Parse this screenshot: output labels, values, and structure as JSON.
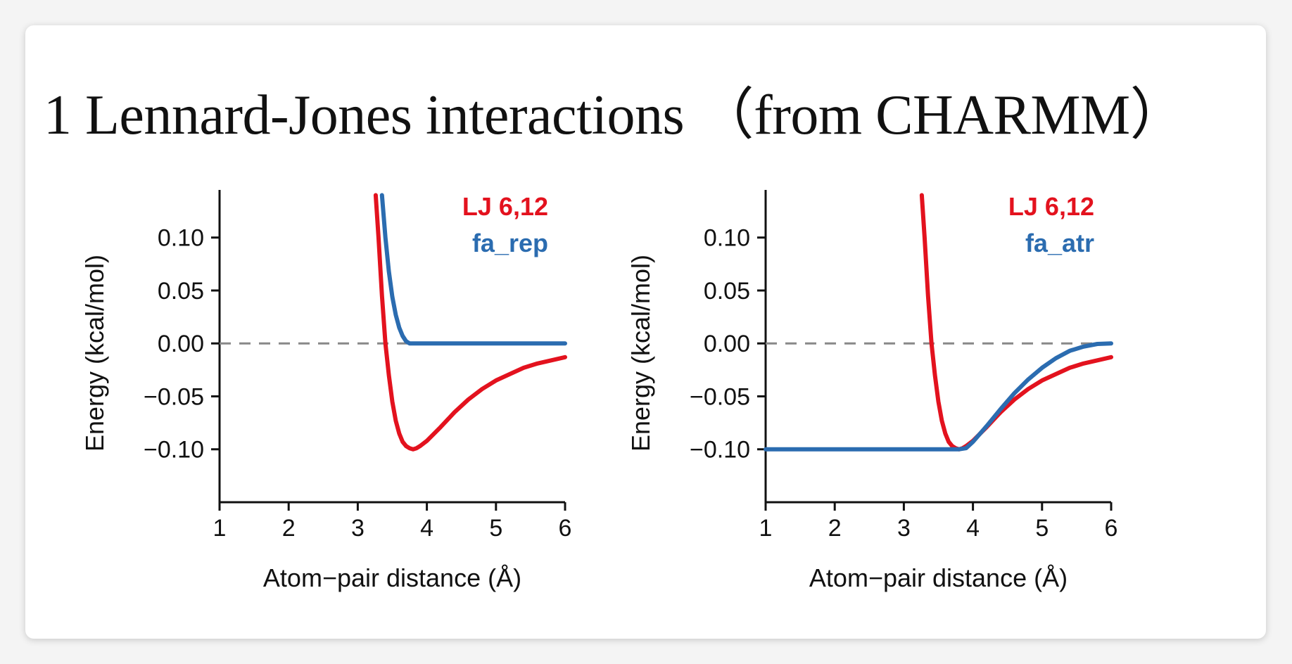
{
  "page": {
    "title": "1 Lennard-Jones interactions （from CHARMM）"
  },
  "colors": {
    "lj": "#e3121e",
    "rosetta": "#2b6cb0",
    "zero_line": "#888888",
    "axis": "#111111"
  },
  "chart_data": [
    {
      "type": "line",
      "xlabel": "Atom−pair distance (Å)",
      "ylabel": "Energy (kcal/mol)",
      "xlim": [
        1,
        6
      ],
      "ylim": [
        -0.15,
        0.145
      ],
      "xticks": [
        "1",
        "2",
        "3",
        "4",
        "5",
        "6"
      ],
      "yticks": [
        "0.10",
        "0.05",
        "0.00",
        "−0.05",
        "−0.10"
      ],
      "grid": false,
      "legend_position": "top-right",
      "reference_line": {
        "y": 0.0,
        "style": "dashed"
      },
      "series": [
        {
          "name": "LJ 6,12",
          "color": "#e3121e",
          "points": [
            [
              3.26,
              0.14
            ],
            [
              3.3,
              0.1
            ],
            [
              3.35,
              0.045
            ],
            [
              3.4,
              0.0
            ],
            [
              3.45,
              -0.03
            ],
            [
              3.5,
              -0.055
            ],
            [
              3.55,
              -0.073
            ],
            [
              3.6,
              -0.085
            ],
            [
              3.65,
              -0.093
            ],
            [
              3.7,
              -0.097
            ],
            [
              3.75,
              -0.099
            ],
            [
              3.8,
              -0.1
            ],
            [
              3.85,
              -0.099
            ],
            [
              3.9,
              -0.097
            ],
            [
              4.0,
              -0.092
            ],
            [
              4.2,
              -0.079
            ],
            [
              4.4,
              -0.065
            ],
            [
              4.6,
              -0.053
            ],
            [
              4.8,
              -0.043
            ],
            [
              5.0,
              -0.035
            ],
            [
              5.2,
              -0.029
            ],
            [
              5.4,
              -0.023
            ],
            [
              5.6,
              -0.019
            ],
            [
              5.8,
              -0.016
            ],
            [
              6.0,
              -0.013
            ]
          ]
        },
        {
          "name": "fa_rep",
          "color": "#2b6cb0",
          "points": [
            [
              3.35,
              0.14
            ],
            [
              3.4,
              0.1
            ],
            [
              3.45,
              0.068
            ],
            [
              3.5,
              0.044
            ],
            [
              3.55,
              0.027
            ],
            [
              3.6,
              0.015
            ],
            [
              3.65,
              0.007
            ],
            [
              3.7,
              0.002
            ],
            [
              3.75,
              0.0
            ],
            [
              3.8,
              0.0
            ],
            [
              4.0,
              0.0
            ],
            [
              4.5,
              0.0
            ],
            [
              5.0,
              0.0
            ],
            [
              5.5,
              0.0
            ],
            [
              6.0,
              0.0
            ]
          ]
        }
      ]
    },
    {
      "type": "line",
      "xlabel": "Atom−pair distance (Å)",
      "ylabel": "Energy (kcal/mol)",
      "xlim": [
        1,
        6
      ],
      "ylim": [
        -0.15,
        0.145
      ],
      "xticks": [
        "1",
        "2",
        "3",
        "4",
        "5",
        "6"
      ],
      "yticks": [
        "0.10",
        "0.05",
        "0.00",
        "−0.05",
        "−0.10"
      ],
      "grid": false,
      "legend_position": "top-right",
      "reference_line": {
        "y": 0.0,
        "style": "dashed"
      },
      "series": [
        {
          "name": "LJ 6,12",
          "color": "#e3121e",
          "points": [
            [
              3.26,
              0.14
            ],
            [
              3.3,
              0.1
            ],
            [
              3.35,
              0.045
            ],
            [
              3.4,
              0.0
            ],
            [
              3.45,
              -0.03
            ],
            [
              3.5,
              -0.055
            ],
            [
              3.55,
              -0.073
            ],
            [
              3.6,
              -0.085
            ],
            [
              3.65,
              -0.093
            ],
            [
              3.7,
              -0.097
            ],
            [
              3.75,
              -0.099
            ],
            [
              3.8,
              -0.1
            ],
            [
              3.85,
              -0.099
            ],
            [
              3.9,
              -0.097
            ],
            [
              4.0,
              -0.092
            ],
            [
              4.2,
              -0.079
            ],
            [
              4.4,
              -0.065
            ],
            [
              4.6,
              -0.053
            ],
            [
              4.8,
              -0.043
            ],
            [
              5.0,
              -0.035
            ],
            [
              5.2,
              -0.029
            ],
            [
              5.4,
              -0.023
            ],
            [
              5.6,
              -0.019
            ],
            [
              5.8,
              -0.016
            ],
            [
              6.0,
              -0.013
            ]
          ]
        },
        {
          "name": "fa_atr",
          "color": "#2b6cb0",
          "points": [
            [
              1.0,
              -0.1
            ],
            [
              2.0,
              -0.1
            ],
            [
              3.0,
              -0.1
            ],
            [
              3.5,
              -0.1
            ],
            [
              3.8,
              -0.1
            ],
            [
              3.9,
              -0.099
            ],
            [
              4.0,
              -0.093
            ],
            [
              4.2,
              -0.078
            ],
            [
              4.4,
              -0.062
            ],
            [
              4.6,
              -0.047
            ],
            [
              4.8,
              -0.034
            ],
            [
              5.0,
              -0.023
            ],
            [
              5.2,
              -0.014
            ],
            [
              5.4,
              -0.007
            ],
            [
              5.6,
              -0.003
            ],
            [
              5.8,
              -0.0005
            ],
            [
              6.0,
              0.0
            ]
          ]
        }
      ]
    }
  ]
}
